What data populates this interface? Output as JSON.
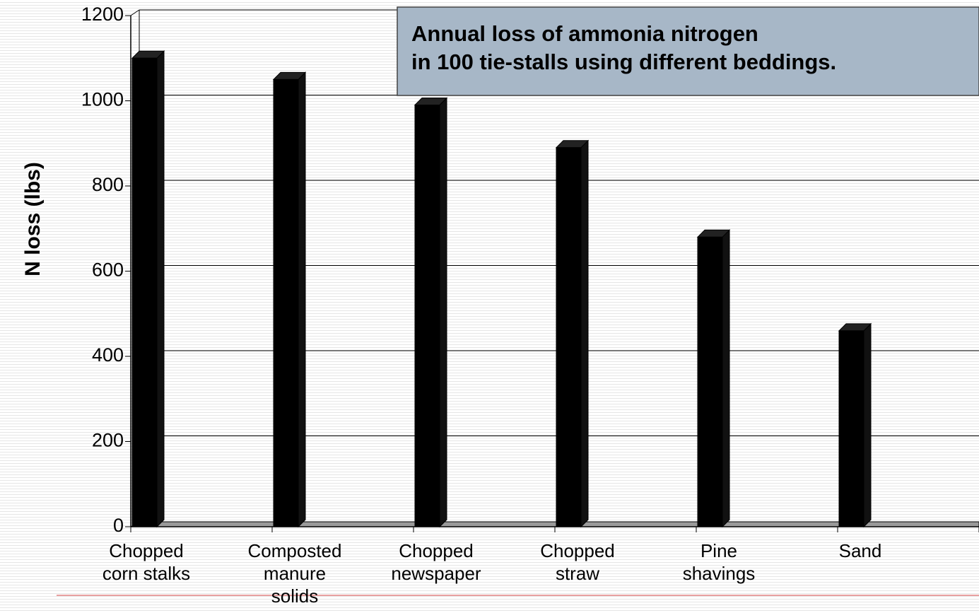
{
  "chart_data": {
    "type": "bar",
    "title": "Annual loss of ammonia nitrogen in 100 tie-stalls using different beddings.",
    "y_label": "N loss (lbs)",
    "categories": [
      "Chopped corn stalks",
      "Composted manure solids",
      "Chopped newspaper",
      "Chopped straw",
      "Pine shavings",
      "Sand"
    ],
    "values": [
      1100,
      1050,
      990,
      890,
      680,
      460
    ],
    "color": "#000000",
    "ylim": [
      0,
      1200
    ],
    "yticks": [
      0,
      200,
      400,
      600,
      800,
      1000,
      1200
    ],
    "grid": true
  }
}
